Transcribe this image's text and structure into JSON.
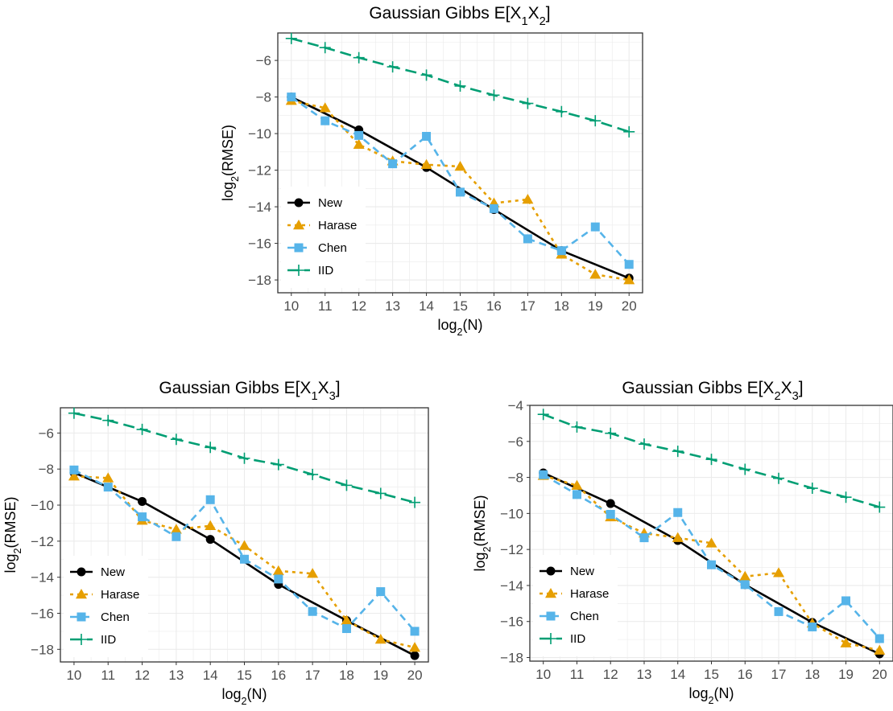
{
  "chart_data": [
    {
      "type": "line",
      "title": "Gaussian Gibbs E[X",
      "title_parts": [
        {
          "t": "Gaussian Gibbs E[X"
        },
        {
          "t": "1",
          "sub": true
        },
        {
          "t": "X"
        },
        {
          "t": "2",
          "sub": true
        },
        {
          "t": "]"
        }
      ],
      "xlabel": "log",
      "xlabel_parts": [
        {
          "t": "log"
        },
        {
          "t": "2",
          "sub": true
        },
        {
          "t": "(N)"
        }
      ],
      "ylabel": "log",
      "ylabel_parts": [
        {
          "t": "log"
        },
        {
          "t": "2",
          "sub": true
        },
        {
          "t": "(RMSE)"
        }
      ],
      "x": [
        10,
        11,
        12,
        13,
        14,
        15,
        16,
        17,
        18,
        19,
        20
      ],
      "xlim": [
        9.6,
        20.4
      ],
      "ylim": [
        -18.7,
        -4.5
      ],
      "xticks": [
        10,
        11,
        12,
        13,
        14,
        15,
        16,
        17,
        18,
        19,
        20
      ],
      "yticks": [
        -18,
        -16,
        -14,
        -12,
        -10,
        -8,
        -6
      ],
      "grid": true,
      "legend_position": "bottom-left",
      "series": [
        {
          "name": "New",
          "color": "#000000",
          "dash": "solid",
          "marker": "circle",
          "values": [
            -8.0,
            null,
            -9.8,
            null,
            -11.85,
            null,
            -14.15,
            null,
            -16.4,
            null,
            -17.9
          ]
        },
        {
          "name": "Harase",
          "color": "#E69F00",
          "dash": "dotted",
          "marker": "triangle",
          "values": [
            -8.2,
            -8.6,
            -10.6,
            -11.5,
            -11.7,
            -11.8,
            -13.8,
            -13.6,
            -16.6,
            -17.7,
            -18.0
          ]
        },
        {
          "name": "Chen",
          "color": "#56B4E9",
          "dash": "dashed",
          "marker": "square",
          "values": [
            -8.0,
            -9.3,
            -10.1,
            -11.65,
            -10.15,
            -13.2,
            -14.1,
            -15.75,
            -16.4,
            -15.1,
            -17.15
          ]
        },
        {
          "name": "IID",
          "color": "#009E73",
          "dash": "longdash",
          "marker": "plus",
          "values": [
            -4.8,
            -5.3,
            -5.85,
            -6.35,
            -6.8,
            -7.4,
            -7.9,
            -8.35,
            -8.8,
            -9.3,
            -9.9
          ]
        }
      ]
    },
    {
      "type": "line",
      "title": "Gaussian Gibbs E[X",
      "title_parts": [
        {
          "t": "Gaussian Gibbs E[X"
        },
        {
          "t": "1",
          "sub": true
        },
        {
          "t": "X"
        },
        {
          "t": "3",
          "sub": true
        },
        {
          "t": "]"
        }
      ],
      "xlabel": "log",
      "xlabel_parts": [
        {
          "t": "log"
        },
        {
          "t": "2",
          "sub": true
        },
        {
          "t": "(N)"
        }
      ],
      "ylabel": "log",
      "ylabel_parts": [
        {
          "t": "log"
        },
        {
          "t": "2",
          "sub": true
        },
        {
          "t": "(RMSE)"
        }
      ],
      "x": [
        10,
        11,
        12,
        13,
        14,
        15,
        16,
        17,
        18,
        19,
        20
      ],
      "xlim": [
        9.6,
        20.4
      ],
      "ylim": [
        -18.7,
        -4.6
      ],
      "xticks": [
        10,
        11,
        12,
        13,
        14,
        15,
        16,
        17,
        18,
        19,
        20
      ],
      "yticks": [
        -18,
        -16,
        -14,
        -12,
        -10,
        -8,
        -6
      ],
      "grid": true,
      "legend_position": "bottom-left",
      "series": [
        {
          "name": "New",
          "color": "#000000",
          "dash": "solid",
          "marker": "circle",
          "values": [
            -8.2,
            null,
            -9.8,
            null,
            -11.9,
            null,
            -14.4,
            null,
            -16.4,
            null,
            -18.35
          ]
        },
        {
          "name": "Harase",
          "color": "#E69F00",
          "dash": "dotted",
          "marker": "triangle",
          "values": [
            -8.4,
            -8.5,
            -10.85,
            -11.35,
            -11.15,
            -12.25,
            -13.65,
            -13.8,
            -16.4,
            -17.45,
            -17.9
          ]
        },
        {
          "name": "Chen",
          "color": "#56B4E9",
          "dash": "dashed",
          "marker": "square",
          "values": [
            -8.05,
            -9.0,
            -10.65,
            -11.75,
            -9.7,
            -13.0,
            -14.1,
            -15.9,
            -16.85,
            -14.8,
            -17.0
          ]
        },
        {
          "name": "IID",
          "color": "#009E73",
          "dash": "longdash",
          "marker": "plus",
          "values": [
            -4.9,
            -5.3,
            -5.8,
            -6.35,
            -6.8,
            -7.4,
            -7.75,
            -8.3,
            -8.9,
            -9.35,
            -9.85
          ]
        }
      ]
    },
    {
      "type": "line",
      "title": "Gaussian Gibbs E[X",
      "title_parts": [
        {
          "t": "Gaussian Gibbs E[X"
        },
        {
          "t": "2",
          "sub": true
        },
        {
          "t": "X"
        },
        {
          "t": "3",
          "sub": true
        },
        {
          "t": "]"
        }
      ],
      "xlabel": "log",
      "xlabel_parts": [
        {
          "t": "log"
        },
        {
          "t": "2",
          "sub": true
        },
        {
          "t": "(N)"
        }
      ],
      "ylabel": "log",
      "ylabel_parts": [
        {
          "t": "log"
        },
        {
          "t": "2",
          "sub": true
        },
        {
          "t": "(RMSE)"
        }
      ],
      "x": [
        10,
        11,
        12,
        13,
        14,
        15,
        16,
        17,
        18,
        19,
        20
      ],
      "xlim": [
        9.6,
        20.4
      ],
      "ylim": [
        -18.2,
        -4.0
      ],
      "xticks": [
        10,
        11,
        12,
        13,
        14,
        15,
        16,
        17,
        18,
        19,
        20
      ],
      "yticks": [
        -18,
        -16,
        -14,
        -12,
        -10,
        -8,
        -6,
        -4
      ],
      "grid": true,
      "legend_position": "bottom-left",
      "series": [
        {
          "name": "New",
          "color": "#000000",
          "dash": "solid",
          "marker": "circle",
          "values": [
            -7.75,
            null,
            -9.45,
            null,
            -11.5,
            null,
            -13.95,
            null,
            -16.05,
            null,
            -17.8
          ]
        },
        {
          "name": "Harase",
          "color": "#E69F00",
          "dash": "dotted",
          "marker": "triangle",
          "values": [
            -7.9,
            -8.45,
            -10.2,
            -11.1,
            -11.35,
            -11.65,
            -13.5,
            -13.3,
            -16.1,
            -17.2,
            -17.6
          ]
        },
        {
          "name": "Chen",
          "color": "#56B4E9",
          "dash": "dashed",
          "marker": "square",
          "values": [
            -7.85,
            -8.95,
            -10.05,
            -11.35,
            -9.95,
            -12.85,
            -13.95,
            -15.45,
            -16.3,
            -14.85,
            -16.95
          ]
        },
        {
          "name": "IID",
          "color": "#009E73",
          "dash": "longdash",
          "marker": "plus",
          "values": [
            -4.5,
            -5.2,
            -5.55,
            -6.15,
            -6.55,
            -7.0,
            -7.55,
            -8.05,
            -8.6,
            -9.1,
            -9.65
          ]
        }
      ]
    }
  ]
}
